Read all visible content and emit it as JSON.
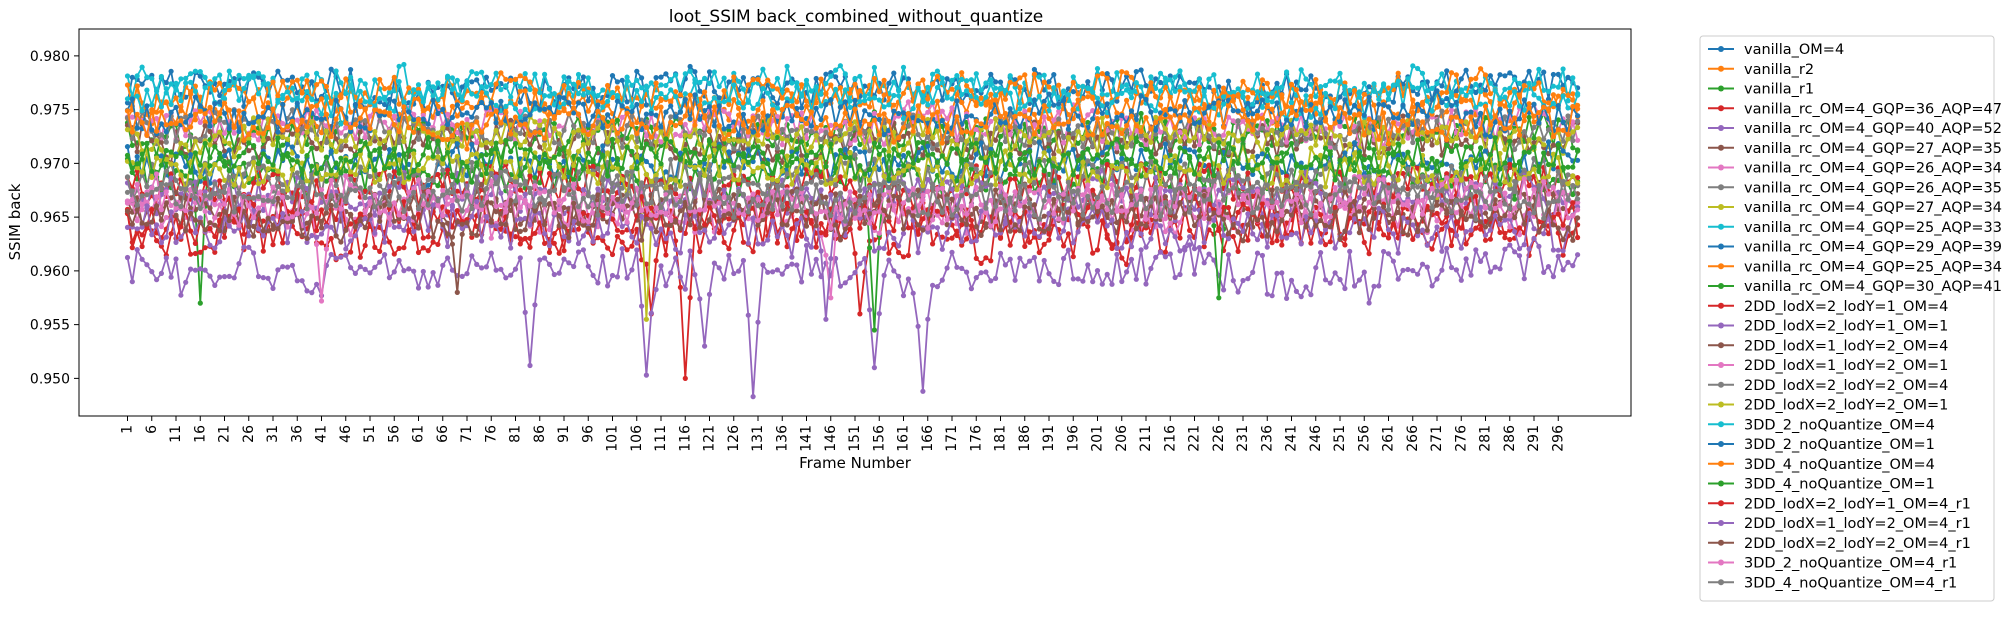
{
  "chart_data": {
    "type": "line",
    "title": "loot_SSIM back_combined_without_quantize",
    "xlabel": "Frame Number",
    "ylabel": "SSIM back",
    "xlim": [
      -9,
      311
    ],
    "ylim": [
      0.9465,
      0.9825
    ],
    "x_range": [
      1,
      300
    ],
    "x_tick_step": 5,
    "yticks": [
      "0.950",
      "0.955",
      "0.960",
      "0.965",
      "0.970",
      "0.975",
      "0.980"
    ],
    "grid": false,
    "legend_position": "outside-right",
    "marker": "circle",
    "series": [
      {
        "name": "vanilla_OM=4",
        "color": "#1f77b4",
        "base": 0.977,
        "amp": 0.0017,
        "seed": 1,
        "dips": []
      },
      {
        "name": "vanilla_r2",
        "color": "#ff7f0e",
        "base": 0.9752,
        "amp": 0.0018,
        "seed": 2,
        "dips": []
      },
      {
        "name": "vanilla_r1",
        "color": "#2ca02c",
        "base": 0.9724,
        "amp": 0.002,
        "seed": 3,
        "dips": [
          [
            16,
            0.957
          ]
        ]
      },
      {
        "name": "vanilla_rc_OM=4_GQP=36_AQP=47",
        "color": "#d62728",
        "base": 0.9635,
        "amp": 0.0024,
        "seed": 4,
        "dips": [
          [
            116,
            0.95
          ],
          [
            109,
            0.956
          ],
          [
            152,
            0.956
          ]
        ]
      },
      {
        "name": "vanilla_rc_OM=4_GQP=40_AQP=52",
        "color": "#9467bd",
        "base": 0.96,
        "amp": 0.0022,
        "seed": 5,
        "dips": [
          [
            84,
            0.9512
          ],
          [
            108,
            0.9503
          ],
          [
            130,
            0.9483
          ],
          [
            155,
            0.951
          ],
          [
            165,
            0.9488
          ],
          [
            120,
            0.953
          ]
        ]
      },
      {
        "name": "vanilla_rc_OM=4_GQP=27_AQP=35",
        "color": "#8c564b",
        "base": 0.972,
        "amp": 0.0019,
        "seed": 6,
        "dips": []
      },
      {
        "name": "vanilla_rc_OM=4_GQP=26_AQP=34",
        "color": "#e377c2",
        "base": 0.9735,
        "amp": 0.0018,
        "seed": 7,
        "dips": []
      },
      {
        "name": "vanilla_rc_OM=4_GQP=26_AQP=35",
        "color": "#7f7f7f",
        "base": 0.973,
        "amp": 0.0018,
        "seed": 8,
        "dips": []
      },
      {
        "name": "vanilla_rc_OM=4_GQP=27_AQP=34",
        "color": "#bcbd22",
        "base": 0.9725,
        "amp": 0.0019,
        "seed": 9,
        "dips": [
          [
            108,
            0.9555
          ]
        ]
      },
      {
        "name": "vanilla_rc_OM=4_GQP=25_AQP=33",
        "color": "#17becf",
        "base": 0.9772,
        "amp": 0.0016,
        "seed": 10,
        "dips": []
      },
      {
        "name": "vanilla_rc_OM=4_GQP=29_AQP=39",
        "color": "#1f77b4",
        "base": 0.97,
        "amp": 0.0019,
        "seed": 11,
        "dips": []
      },
      {
        "name": "vanilla_rc_OM=4_GQP=25_AQP=34",
        "color": "#ff7f0e",
        "base": 0.9765,
        "amp": 0.0017,
        "seed": 12,
        "dips": []
      },
      {
        "name": "vanilla_rc_OM=4_GQP=30_AQP=41",
        "color": "#2ca02c",
        "base": 0.969,
        "amp": 0.002,
        "seed": 13,
        "dips": [
          [
            155,
            0.9545
          ],
          [
            226,
            0.9575
          ]
        ]
      },
      {
        "name": "2DD_lodX=2_lodY=1_OM=4",
        "color": "#d62728",
        "base": 0.968,
        "amp": 0.002,
        "seed": 14,
        "dips": []
      },
      {
        "name": "2DD_lodX=2_lodY=1_OM=1",
        "color": "#9467bd",
        "base": 0.967,
        "amp": 0.002,
        "seed": 15,
        "dips": []
      },
      {
        "name": "2DD_lodX=1_lodY=2_OM=4",
        "color": "#8c564b",
        "base": 0.966,
        "amp": 0.0021,
        "seed": 16,
        "dips": [
          [
            69,
            0.958
          ]
        ]
      },
      {
        "name": "2DD_lodX=1_lodY=2_OM=1",
        "color": "#e377c2",
        "base": 0.9655,
        "amp": 0.0021,
        "seed": 17,
        "dips": [
          [
            41,
            0.9572
          ],
          [
            146,
            0.9575
          ]
        ]
      },
      {
        "name": "2DD_lodX=2_lodY=2_OM=4",
        "color": "#7f7f7f",
        "base": 0.9685,
        "amp": 0.002,
        "seed": 18,
        "dips": []
      },
      {
        "name": "2DD_lodX=2_lodY=2_OM=1",
        "color": "#bcbd22",
        "base": 0.9695,
        "amp": 0.0019,
        "seed": 19,
        "dips": []
      },
      {
        "name": "3DD_2_noQuantize_OM=4",
        "color": "#17becf",
        "base": 0.976,
        "amp": 0.0017,
        "seed": 20,
        "dips": []
      },
      {
        "name": "3DD_2_noQuantize_OM=1",
        "color": "#1f77b4",
        "base": 0.9745,
        "amp": 0.0018,
        "seed": 21,
        "dips": []
      },
      {
        "name": "3DD_4_noQuantize_OM=4",
        "color": "#ff7f0e",
        "base": 0.974,
        "amp": 0.0018,
        "seed": 22,
        "dips": []
      },
      {
        "name": "3DD_4_noQuantize_OM=1",
        "color": "#2ca02c",
        "base": 0.9705,
        "amp": 0.0019,
        "seed": 23,
        "dips": []
      },
      {
        "name": "2DD_lodX=2_lodY=1_OM=4_r1",
        "color": "#d62728",
        "base": 0.9645,
        "amp": 0.0022,
        "seed": 24,
        "dips": []
      },
      {
        "name": "2DD_lodX=1_lodY=2_OM=4_r1",
        "color": "#9467bd",
        "base": 0.964,
        "amp": 0.0022,
        "seed": 25,
        "dips": [
          [
            145,
            0.9555
          ]
        ]
      },
      {
        "name": "2DD_lodX=2_lodY=2_OM=4_r1",
        "color": "#8c564b",
        "base": 0.965,
        "amp": 0.0021,
        "seed": 26,
        "dips": []
      },
      {
        "name": "3DD_2_noQuantize_OM=4_r1",
        "color": "#e377c2",
        "base": 0.9665,
        "amp": 0.0021,
        "seed": 27,
        "dips": []
      },
      {
        "name": "3DD_4_noQuantize_OM=4_r1",
        "color": "#7f7f7f",
        "base": 0.967,
        "amp": 0.0021,
        "seed": 28,
        "dips": []
      }
    ]
  }
}
